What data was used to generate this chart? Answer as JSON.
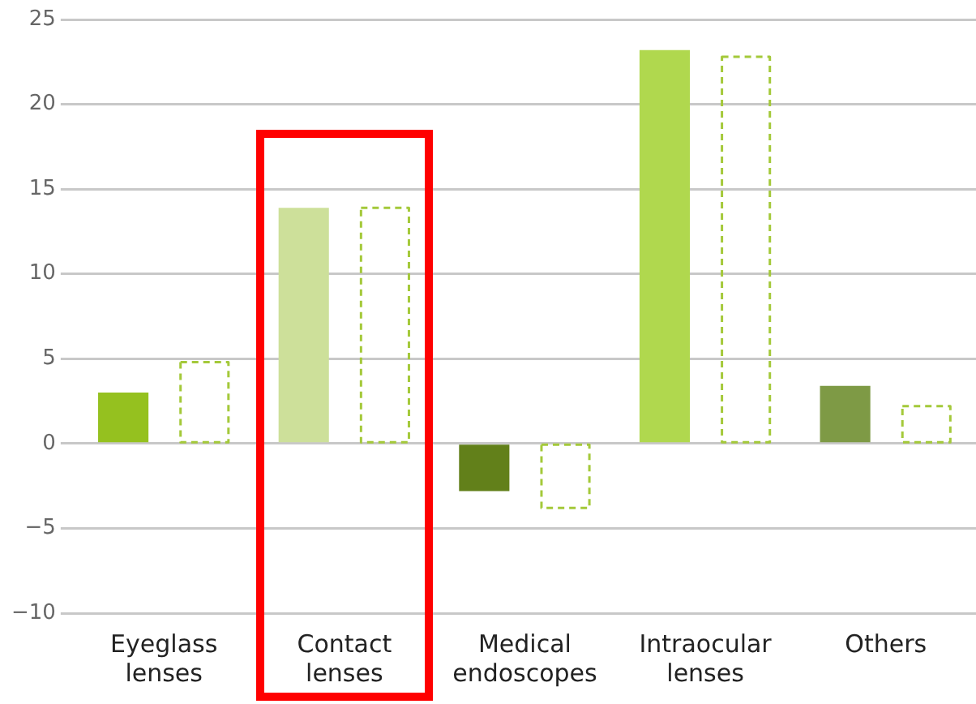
{
  "chart_data": {
    "type": "bar",
    "categories": [
      "Eyeglass lenses",
      "Contact lenses",
      "Medical endoscopes",
      "Intraocular lenses",
      "Others"
    ],
    "series": [
      {
        "colors": [
          "#95c11f",
          "#cde09a",
          "#62801a",
          "#b0d84e",
          "#7e9a45"
        ],
        "values": [
          3.0,
          13.9,
          -2.8,
          23.2,
          3.4
        ]
      },
      {
        "color": "#a4c93a",
        "line_style": "dashed",
        "values": [
          4.8,
          13.9,
          -3.8,
          22.8,
          2.2
        ]
      }
    ],
    "ylim": [
      -10,
      25
    ],
    "yticks": [
      -10,
      -5,
      0,
      5,
      10,
      15,
      20,
      25
    ],
    "grid": "y",
    "legend": false
  }
}
